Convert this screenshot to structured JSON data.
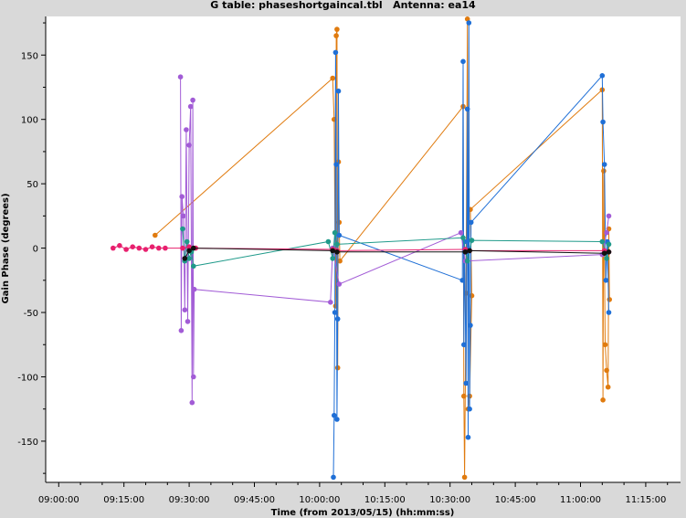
{
  "chart_data": {
    "type": "scatter",
    "title": "G table: phaseshortgaincal.tbl",
    "antenna": "Antenna: ea14",
    "xlabel": "Time (from 2013/05/15) (hh:mm:ss)",
    "ylabel": "Gain Phase (degrees)",
    "xlim": [
      "08:57:00",
      "11:23:00"
    ],
    "ylim": [
      -182,
      180
    ],
    "x_ticks": [
      "09:00:00",
      "09:15:00",
      "09:30:00",
      "09:45:00",
      "10:00:00",
      "10:15:00",
      "10:30:00",
      "10:45:00",
      "11:00:00",
      "11:15:00"
    ],
    "y_ticks": [
      -150,
      -100,
      -50,
      0,
      50,
      100,
      150
    ],
    "grid": false,
    "colors": {
      "orange": "#e07b0f",
      "blue": "#1f6fd6",
      "purple": "#a25cd6",
      "teal": "#1f9a8a",
      "pink": "#e8206e",
      "black": "#111111",
      "background": "#ffffff",
      "frame": "#d9d9d9"
    },
    "series": [
      {
        "color": "orange",
        "points": [
          [
            "09:22:10",
            10
          ],
          [
            "10:03:00",
            132
          ],
          [
            "10:03:20",
            100
          ],
          [
            "10:03:40",
            -45
          ],
          [
            "10:03:50",
            165
          ],
          [
            "10:04:00",
            170
          ],
          [
            "10:04:10",
            -93
          ],
          [
            "10:04:20",
            67
          ],
          [
            "10:04:30",
            20
          ],
          [
            "10:04:40",
            -10
          ],
          [
            "10:33:00",
            110
          ],
          [
            "10:33:10",
            -115
          ],
          [
            "10:33:20",
            -178
          ],
          [
            "10:33:40",
            -35
          ],
          [
            "10:34:00",
            178
          ],
          [
            "10:34:10",
            -125
          ],
          [
            "10:34:30",
            -115
          ],
          [
            "10:35:00",
            -37
          ],
          [
            "10:34:40",
            30
          ],
          [
            "11:05:00",
            123
          ],
          [
            "11:05:10",
            -118
          ],
          [
            "11:05:20",
            60
          ],
          [
            "11:05:40",
            -75
          ],
          [
            "11:06:00",
            -95
          ],
          [
            "11:06:20",
            -108
          ],
          [
            "11:06:30",
            15
          ],
          [
            "11:06:40",
            -40
          ]
        ]
      },
      {
        "color": "blue",
        "points": [
          [
            "10:03:10",
            -178
          ],
          [
            "10:03:20",
            -130
          ],
          [
            "10:03:30",
            -50
          ],
          [
            "10:03:40",
            152
          ],
          [
            "10:03:50",
            65
          ],
          [
            "10:04:00",
            -133
          ],
          [
            "10:04:10",
            -55
          ],
          [
            "10:04:20",
            122
          ],
          [
            "10:04:30",
            10
          ],
          [
            "10:32:50",
            -25
          ],
          [
            "10:33:00",
            145
          ],
          [
            "10:33:10",
            -75
          ],
          [
            "10:33:20",
            5
          ],
          [
            "10:33:40",
            -105
          ],
          [
            "10:34:00",
            108
          ],
          [
            "10:34:10",
            -147
          ],
          [
            "10:34:20",
            175
          ],
          [
            "10:34:30",
            -125
          ],
          [
            "10:34:40",
            -60
          ],
          [
            "10:34:50",
            20
          ],
          [
            "11:05:00",
            134
          ],
          [
            "11:05:10",
            98
          ],
          [
            "11:05:30",
            65
          ],
          [
            "11:05:50",
            -25
          ],
          [
            "11:06:10",
            5
          ],
          [
            "11:06:30",
            -50
          ]
        ]
      },
      {
        "color": "purple",
        "points": [
          [
            "09:28:00",
            133
          ],
          [
            "09:28:10",
            -64
          ],
          [
            "09:28:20",
            40
          ],
          [
            "09:28:40",
            25
          ],
          [
            "09:29:00",
            -48
          ],
          [
            "09:29:20",
            92
          ],
          [
            "09:29:40",
            -57
          ],
          [
            "09:30:00",
            80
          ],
          [
            "09:30:20",
            110
          ],
          [
            "09:30:40",
            -120
          ],
          [
            "09:30:50",
            115
          ],
          [
            "09:31:00",
            -100
          ],
          [
            "09:31:10",
            -32
          ],
          [
            "10:02:30",
            -42
          ],
          [
            "10:03:00",
            0
          ],
          [
            "10:04:30",
            -28
          ],
          [
            "10:32:30",
            12
          ],
          [
            "10:33:30",
            -10
          ],
          [
            "11:05:00",
            -5
          ],
          [
            "11:06:00",
            12
          ],
          [
            "11:06:30",
            25
          ]
        ]
      },
      {
        "color": "teal",
        "points": [
          [
            "09:28:30",
            15
          ],
          [
            "09:29:00",
            -10
          ],
          [
            "09:29:30",
            5
          ],
          [
            "09:30:00",
            -8
          ],
          [
            "09:30:30",
            -3
          ],
          [
            "09:31:00",
            -14
          ],
          [
            "10:02:00",
            5
          ],
          [
            "10:03:00",
            -8
          ],
          [
            "10:03:30",
            12
          ],
          [
            "10:04:00",
            3
          ],
          [
            "10:33:00",
            8
          ],
          [
            "10:34:00",
            -10
          ],
          [
            "10:35:00",
            6
          ],
          [
            "11:05:00",
            5
          ],
          [
            "11:06:00",
            -8
          ],
          [
            "11:06:30",
            3
          ]
        ]
      },
      {
        "color": "pink",
        "points": [
          [
            "09:12:30",
            0
          ],
          [
            "09:14:00",
            2
          ],
          [
            "09:15:30",
            -1
          ],
          [
            "09:17:00",
            1
          ],
          [
            "09:18:30",
            0
          ],
          [
            "09:20:00",
            -1
          ],
          [
            "09:21:30",
            1
          ],
          [
            "09:23:00",
            0
          ],
          [
            "09:24:30",
            0
          ],
          [
            "09:28:30",
            0
          ],
          [
            "09:30:00",
            1
          ],
          [
            "09:31:30",
            0
          ],
          [
            "10:03:00",
            -1
          ],
          [
            "10:04:00",
            -2
          ],
          [
            "10:33:30",
            -1
          ],
          [
            "10:34:30",
            -2
          ],
          [
            "11:05:30",
            -2
          ],
          [
            "11:06:30",
            -3
          ]
        ]
      },
      {
        "color": "black",
        "points": [
          [
            "09:29:00",
            -8
          ],
          [
            "09:30:00",
            -2
          ],
          [
            "09:31:00",
            0
          ],
          [
            "10:03:00",
            -2
          ],
          [
            "10:04:00",
            -3
          ],
          [
            "10:33:30",
            -3
          ],
          [
            "10:34:30",
            -2
          ],
          [
            "11:05:30",
            -4
          ],
          [
            "11:06:30",
            -3
          ]
        ]
      }
    ]
  }
}
